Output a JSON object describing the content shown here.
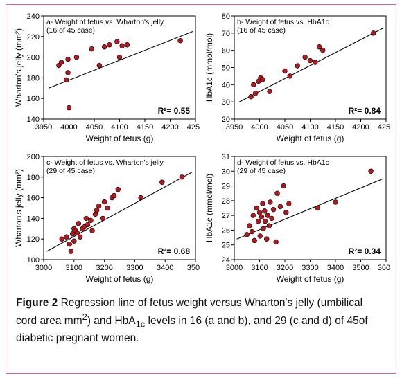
{
  "figure": {
    "caption_lead": "Figure 2",
    "caption_rest_1": " Regression line of fetus weight versus Wharton's jelly (umbilical cord area mm",
    "caption_sup1": "2",
    "caption_rest_2": ") and HbA",
    "caption_sub1": "1c",
    "caption_rest_3": " levels in 16 (a and b), and 29 (c and d) of 45of diabetic pregnant women.",
    "frame_border": "#c36b8e"
  },
  "common": {
    "axis_color": "#000000",
    "tick_color": "#000000",
    "tick_font_size": 11,
    "label_font_size": 12,
    "title_font_size": 10.5,
    "marker_fill": "#b4191f",
    "marker_stroke": "#000000",
    "marker_radius": 3.4,
    "line_color": "#000000",
    "line_width": 1.1,
    "r2_font_size": 12,
    "r2_weight": "bold",
    "panel_bg": "#ffffff"
  },
  "panels": {
    "a": {
      "title_line1": "a- Weight of fetus vs. Wharton's jelly",
      "title_line2": "  (16 of 45 case)",
      "xlabel": "Weight of fetus (g)",
      "ylabel": "Wharton's jelly (mm²)",
      "xlim": [
        3950,
        4250
      ],
      "ylim": [
        140,
        240
      ],
      "xticks": [
        3950,
        4000,
        4050,
        4100,
        4150,
        4200,
        4250
      ],
      "yticks": [
        140,
        160,
        180,
        200,
        220,
        240
      ],
      "r2_label": "R²= 0.55",
      "line": {
        "x1": 3960,
        "y1": 170,
        "x2": 4245,
        "y2": 225
      },
      "points": [
        {
          "x": 3980,
          "y": 192
        },
        {
          "x": 3985,
          "y": 195
        },
        {
          "x": 3995,
          "y": 178
        },
        {
          "x": 3998,
          "y": 185
        },
        {
          "x": 3998,
          "y": 198
        },
        {
          "x": 4000,
          "y": 151
        },
        {
          "x": 4015,
          "y": 200
        },
        {
          "x": 4045,
          "y": 208
        },
        {
          "x": 4060,
          "y": 192
        },
        {
          "x": 4070,
          "y": 210
        },
        {
          "x": 4080,
          "y": 212
        },
        {
          "x": 4095,
          "y": 215
        },
        {
          "x": 4100,
          "y": 200
        },
        {
          "x": 4105,
          "y": 211
        },
        {
          "x": 4115,
          "y": 212
        },
        {
          "x": 4220,
          "y": 216
        }
      ]
    },
    "b": {
      "title_line1": "b- Weight of fetus vs. HbA1c",
      "title_line2": "  (16 of 45 case)",
      "xlabel": "Weight of fetus (g)",
      "ylabel": "HbA1c (mmol/mol)",
      "xlim": [
        3950,
        4250
      ],
      "ylim": [
        20,
        80
      ],
      "xticks": [
        3950,
        4000,
        4050,
        4100,
        4150,
        4200,
        4250
      ],
      "yticks": [
        20,
        30,
        40,
        50,
        60,
        70,
        80
      ],
      "r2_label": "R²= 0.84",
      "line": {
        "x1": 3960,
        "y1": 30,
        "x2": 4245,
        "y2": 73
      },
      "points": [
        {
          "x": 3983,
          "y": 33
        },
        {
          "x": 3988,
          "y": 40
        },
        {
          "x": 3992,
          "y": 35
        },
        {
          "x": 3998,
          "y": 42
        },
        {
          "x": 4002,
          "y": 44
        },
        {
          "x": 4006,
          "y": 43
        },
        {
          "x": 4020,
          "y": 36
        },
        {
          "x": 4050,
          "y": 48
        },
        {
          "x": 4060,
          "y": 45
        },
        {
          "x": 4075,
          "y": 51
        },
        {
          "x": 4090,
          "y": 56
        },
        {
          "x": 4100,
          "y": 54
        },
        {
          "x": 4110,
          "y": 53
        },
        {
          "x": 4118,
          "y": 62
        },
        {
          "x": 4125,
          "y": 60
        },
        {
          "x": 4225,
          "y": 70
        }
      ]
    },
    "c": {
      "title_line1": "c- Weight of fetus vs. Wharton's jelly",
      "title_line2": "  (29 of 45 case)",
      "xlabel": "Weight of fetus (g)",
      "ylabel": "Wharton's jelly (mm²)",
      "xlim": [
        3000,
        3500
      ],
      "ylim": [
        100,
        200
      ],
      "xticks": [
        3000,
        3100,
        3200,
        3300,
        3400,
        3500
      ],
      "yticks": [
        100,
        120,
        140,
        160,
        180,
        200
      ],
      "r2_label": "R²= 0.68",
      "line": {
        "x1": 3010,
        "y1": 108,
        "x2": 3490,
        "y2": 185
      },
      "points": [
        {
          "x": 3060,
          "y": 120
        },
        {
          "x": 3075,
          "y": 122
        },
        {
          "x": 3085,
          "y": 115
        },
        {
          "x": 3090,
          "y": 108
        },
        {
          "x": 3095,
          "y": 125
        },
        {
          "x": 3100,
          "y": 118
        },
        {
          "x": 3100,
          "y": 130
        },
        {
          "x": 3105,
          "y": 128
        },
        {
          "x": 3110,
          "y": 126
        },
        {
          "x": 3115,
          "y": 135
        },
        {
          "x": 3120,
          "y": 122
        },
        {
          "x": 3128,
          "y": 130
        },
        {
          "x": 3135,
          "y": 132
        },
        {
          "x": 3140,
          "y": 140
        },
        {
          "x": 3145,
          "y": 134
        },
        {
          "x": 3155,
          "y": 138
        },
        {
          "x": 3160,
          "y": 128
        },
        {
          "x": 3170,
          "y": 144
        },
        {
          "x": 3175,
          "y": 148
        },
        {
          "x": 3182,
          "y": 152
        },
        {
          "x": 3195,
          "y": 140
        },
        {
          "x": 3200,
          "y": 156
        },
        {
          "x": 3210,
          "y": 150
        },
        {
          "x": 3225,
          "y": 160
        },
        {
          "x": 3232,
          "y": 162
        },
        {
          "x": 3245,
          "y": 168
        },
        {
          "x": 3320,
          "y": 160
        },
        {
          "x": 3390,
          "y": 175
        },
        {
          "x": 3455,
          "y": 180
        }
      ]
    },
    "d": {
      "title_line1": "d- Weight of fetus vs. HbA1c",
      "title_line2": "  (29 of 45 case)",
      "xlabel": "Weight of fetus (g)",
      "ylabel": "HbA1c (mmol/mol)",
      "xlim": [
        3000,
        3600
      ],
      "ylim": [
        24,
        31
      ],
      "xticks": [
        3000,
        3100,
        3200,
        3300,
        3400,
        3500,
        3600
      ],
      "yticks": [
        24,
        25,
        26,
        27,
        28,
        29,
        30,
        31
      ],
      "r2_label": "R²= 0.34",
      "line": {
        "x1": 3010,
        "y1": 25.4,
        "x2": 3590,
        "y2": 29.5
      },
      "points": [
        {
          "x": 3050,
          "y": 25.7
        },
        {
          "x": 3060,
          "y": 26.3
        },
        {
          "x": 3070,
          "y": 25.9
        },
        {
          "x": 3075,
          "y": 27.0
        },
        {
          "x": 3080,
          "y": 25.3
        },
        {
          "x": 3088,
          "y": 27.5
        },
        {
          "x": 3095,
          "y": 26.6
        },
        {
          "x": 3100,
          "y": 27.2
        },
        {
          "x": 3102,
          "y": 25.6
        },
        {
          "x": 3108,
          "y": 26.9
        },
        {
          "x": 3112,
          "y": 27.8
        },
        {
          "x": 3115,
          "y": 26.1
        },
        {
          "x": 3120,
          "y": 27.3
        },
        {
          "x": 3122,
          "y": 26.6
        },
        {
          "x": 3128,
          "y": 25.4
        },
        {
          "x": 3132,
          "y": 27.0
        },
        {
          "x": 3138,
          "y": 26.3
        },
        {
          "x": 3142,
          "y": 27.9
        },
        {
          "x": 3148,
          "y": 26.8
        },
        {
          "x": 3155,
          "y": 27.4
        },
        {
          "x": 3165,
          "y": 25.2
        },
        {
          "x": 3170,
          "y": 28.5
        },
        {
          "x": 3182,
          "y": 27.6
        },
        {
          "x": 3195,
          "y": 29.0
        },
        {
          "x": 3205,
          "y": 27.2
        },
        {
          "x": 3216,
          "y": 27.8
        },
        {
          "x": 3330,
          "y": 27.5
        },
        {
          "x": 3400,
          "y": 27.9
        },
        {
          "x": 3540,
          "y": 30.0
        }
      ]
    }
  }
}
